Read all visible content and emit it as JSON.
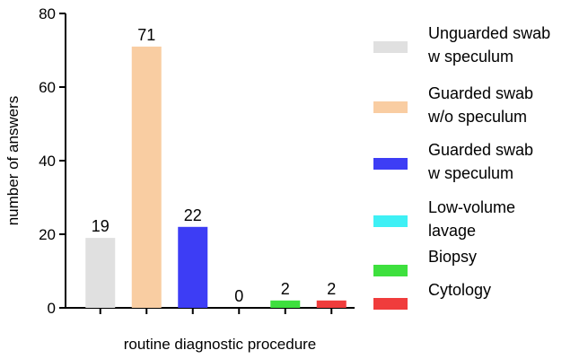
{
  "chart_data": {
    "type": "bar",
    "title": "",
    "xlabel": "routine diagnostic procedure",
    "ylabel": "number of answers",
    "ylim": [
      0,
      80
    ],
    "yticks": [
      0,
      20,
      40,
      60,
      80
    ],
    "grid": false,
    "legend_position": "right",
    "series": [
      {
        "name": "Unguarded swab w speculum",
        "value": 19,
        "label": "19",
        "color": "#e0e0e0"
      },
      {
        "name": "Guarded swab w/o speculum",
        "value": 71,
        "label": "71",
        "color": "#f9cda2"
      },
      {
        "name": "Guarded swab w speculum",
        "value": 22,
        "label": "22",
        "color": "#3d3df5"
      },
      {
        "name": "Low-volume lavage",
        "value": 0,
        "label": "0",
        "color": "#3ef0f5"
      },
      {
        "name": "Biopsy",
        "value": 2,
        "label": "2",
        "color": "#3ee03e"
      },
      {
        "name": "Cytology",
        "value": 2,
        "label": "2",
        "color": "#f03c3c"
      }
    ]
  }
}
